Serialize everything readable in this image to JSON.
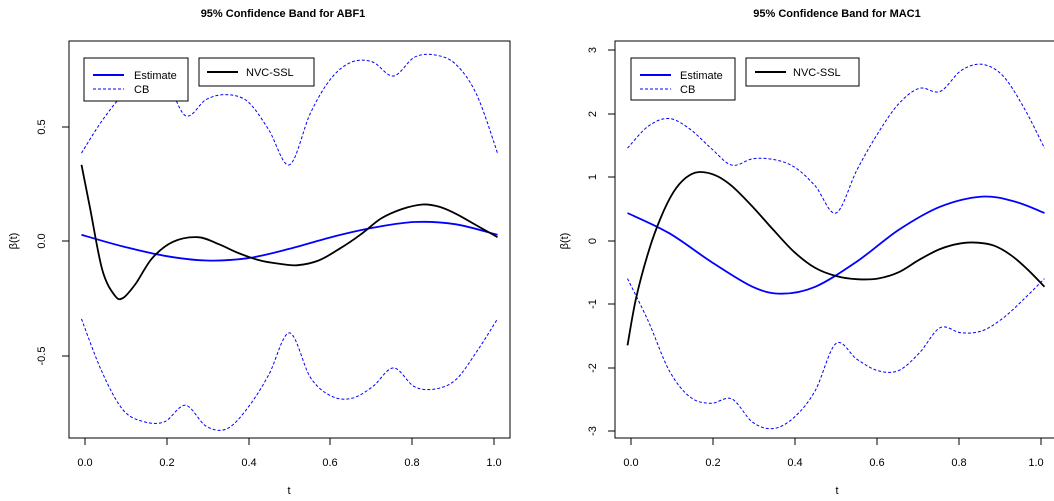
{
  "colors": {
    "estimate": "#0000ff",
    "cb": "#0000ff",
    "nvc": "#000000"
  },
  "chart_data": [
    {
      "type": "line",
      "title": "95% Confidence Band for ABF1",
      "xlabel": "t",
      "ylabel": "β(t)",
      "xlim": [
        -0.03,
        1.03
      ],
      "ylim": [
        -0.84,
        0.86
      ],
      "xticks": [
        0.0,
        0.2,
        0.4,
        0.6,
        0.8,
        1.0
      ],
      "xtick_labels": [
        "0.0",
        "0.2",
        "0.4",
        "0.6",
        "0.8",
        "1.0"
      ],
      "yticks": [
        -0.5,
        0.0,
        0.5
      ],
      "ytick_labels": [
        "-0.5",
        "0.0",
        "0.5"
      ],
      "legend": [
        {
          "group": 1,
          "entries": [
            {
              "label": "Estimate",
              "style": "solid-blue"
            },
            {
              "label": "CB",
              "style": "dashed-blue"
            }
          ]
        },
        {
          "group": 2,
          "entries": [
            {
              "label": "NVC-SSL",
              "style": "solid-black"
            }
          ]
        }
      ],
      "legend_position": "top-left",
      "series": [
        {
          "name": "Estimate",
          "style": "solid-blue",
          "x": [
            0,
            0.1,
            0.2,
            0.3,
            0.4,
            0.5,
            0.6,
            0.7,
            0.8,
            0.9,
            1.0
          ],
          "y": [
            0.03,
            -0.02,
            -0.06,
            -0.08,
            -0.07,
            -0.03,
            0.02,
            0.06,
            0.085,
            0.075,
            0.03
          ]
        },
        {
          "name": "CB",
          "style": "dashed-blue",
          "x": [
            0,
            0.05,
            0.1,
            0.15,
            0.2,
            0.25,
            0.3,
            0.35,
            0.4,
            0.45,
            0.5,
            0.55,
            0.6,
            0.65,
            0.7,
            0.75,
            0.8,
            0.85,
            0.9,
            0.95,
            1.0
          ],
          "y": [
            0.38,
            0.52,
            0.63,
            0.69,
            0.7,
            0.54,
            0.61,
            0.63,
            0.6,
            0.48,
            0.33,
            0.55,
            0.7,
            0.77,
            0.77,
            0.71,
            0.79,
            0.8,
            0.76,
            0.63,
            0.38
          ]
        },
        {
          "name": "CB",
          "style": "dashed-blue",
          "x": [
            0,
            0.05,
            0.1,
            0.15,
            0.2,
            0.25,
            0.3,
            0.35,
            0.4,
            0.45,
            0.5,
            0.55,
            0.6,
            0.65,
            0.7,
            0.75,
            0.8,
            0.85,
            0.9,
            0.95,
            1.0
          ],
          "y": [
            -0.33,
            -0.56,
            -0.72,
            -0.77,
            -0.77,
            -0.7,
            -0.79,
            -0.8,
            -0.71,
            -0.57,
            -0.39,
            -0.58,
            -0.66,
            -0.67,
            -0.62,
            -0.54,
            -0.62,
            -0.63,
            -0.59,
            -0.47,
            -0.33
          ]
        },
        {
          "name": "NVC-SSL",
          "style": "solid-black",
          "x": [
            0,
            0.02,
            0.05,
            0.08,
            0.1,
            0.13,
            0.17,
            0.22,
            0.28,
            0.33,
            0.38,
            0.43,
            0.48,
            0.52,
            0.57,
            0.62,
            0.67,
            0.72,
            0.77,
            0.82,
            0.86,
            0.9,
            0.95,
            1.0
          ],
          "y": [
            0.33,
            0.15,
            -0.12,
            -0.23,
            -0.24,
            -0.18,
            -0.07,
            0.0,
            0.02,
            -0.01,
            -0.05,
            -0.08,
            -0.095,
            -0.1,
            -0.08,
            -0.03,
            0.03,
            0.1,
            0.14,
            0.16,
            0.15,
            0.12,
            0.07,
            0.02
          ]
        }
      ]
    },
    {
      "type": "line",
      "title": "95% Confidence Band for MAC1",
      "xlabel": "t",
      "ylabel": "β(t)",
      "xlim": [
        -0.03,
        1.03
      ],
      "ylim": [
        -3.05,
        3.25
      ],
      "xticks": [
        0.0,
        0.2,
        0.4,
        0.6,
        0.8,
        1.0
      ],
      "xtick_labels": [
        "0.0",
        "0.2",
        "0.4",
        "0.6",
        "0.8",
        "1.0"
      ],
      "yticks": [
        -3,
        -2,
        -1,
        0,
        1,
        2,
        3
      ],
      "ytick_labels": [
        "-3",
        "-2",
        "-1",
        "0",
        "1",
        "2",
        "3"
      ],
      "legend": [
        {
          "group": 1,
          "entries": [
            {
              "label": "Estimate",
              "style": "solid-blue"
            },
            {
              "label": "CB",
              "style": "dashed-blue"
            }
          ]
        },
        {
          "group": 2,
          "entries": [
            {
              "label": "NVC-SSL",
              "style": "solid-black"
            }
          ]
        }
      ],
      "legend_position": "top-left",
      "series": [
        {
          "name": "Estimate",
          "style": "solid-blue",
          "x": [
            0,
            0.1,
            0.2,
            0.3,
            0.37,
            0.45,
            0.55,
            0.65,
            0.75,
            0.85,
            0.93,
            1.0
          ],
          "y": [
            0.52,
            0.2,
            -0.25,
            -0.65,
            -0.76,
            -0.65,
            -0.25,
            0.25,
            0.62,
            0.78,
            0.7,
            0.52
          ]
        },
        {
          "name": "CB",
          "style": "dashed-blue",
          "x": [
            0,
            0.05,
            0.1,
            0.15,
            0.2,
            0.25,
            0.3,
            0.35,
            0.4,
            0.45,
            0.5,
            0.55,
            0.6,
            0.65,
            0.7,
            0.75,
            0.8,
            0.85,
            0.9,
            0.95,
            1.0
          ],
          "y": [
            1.55,
            1.9,
            2.02,
            1.85,
            1.55,
            1.28,
            1.38,
            1.37,
            1.25,
            0.95,
            0.52,
            1.2,
            1.78,
            2.25,
            2.5,
            2.45,
            2.78,
            2.88,
            2.7,
            2.2,
            1.55
          ]
        },
        {
          "name": "CB",
          "style": "dashed-blue",
          "x": [
            0,
            0.05,
            0.1,
            0.15,
            0.2,
            0.25,
            0.3,
            0.35,
            0.4,
            0.45,
            0.5,
            0.55,
            0.6,
            0.65,
            0.7,
            0.75,
            0.8,
            0.85,
            0.9,
            0.95,
            1.0
          ],
          "y": [
            -0.52,
            -1.2,
            -1.98,
            -2.4,
            -2.5,
            -2.43,
            -2.8,
            -2.9,
            -2.72,
            -2.3,
            -1.55,
            -1.8,
            -1.98,
            -1.98,
            -1.7,
            -1.3,
            -1.38,
            -1.35,
            -1.15,
            -0.85,
            -0.52
          ]
        },
        {
          "name": "NVC-SSL",
          "style": "solid-black",
          "x": [
            0,
            0.02,
            0.05,
            0.08,
            0.11,
            0.14,
            0.17,
            0.21,
            0.25,
            0.3,
            0.35,
            0.4,
            0.45,
            0.5,
            0.55,
            0.6,
            0.65,
            0.7,
            0.75,
            0.8,
            0.84,
            0.88,
            0.92,
            0.96,
            1.0
          ],
          "y": [
            -1.58,
            -0.85,
            -0.1,
            0.45,
            0.85,
            1.08,
            1.17,
            1.12,
            0.95,
            0.62,
            0.25,
            -0.1,
            -0.35,
            -0.48,
            -0.53,
            -0.52,
            -0.42,
            -0.22,
            -0.05,
            0.04,
            0.05,
            0.0,
            -0.15,
            -0.38,
            -0.65
          ]
        }
      ]
    }
  ]
}
